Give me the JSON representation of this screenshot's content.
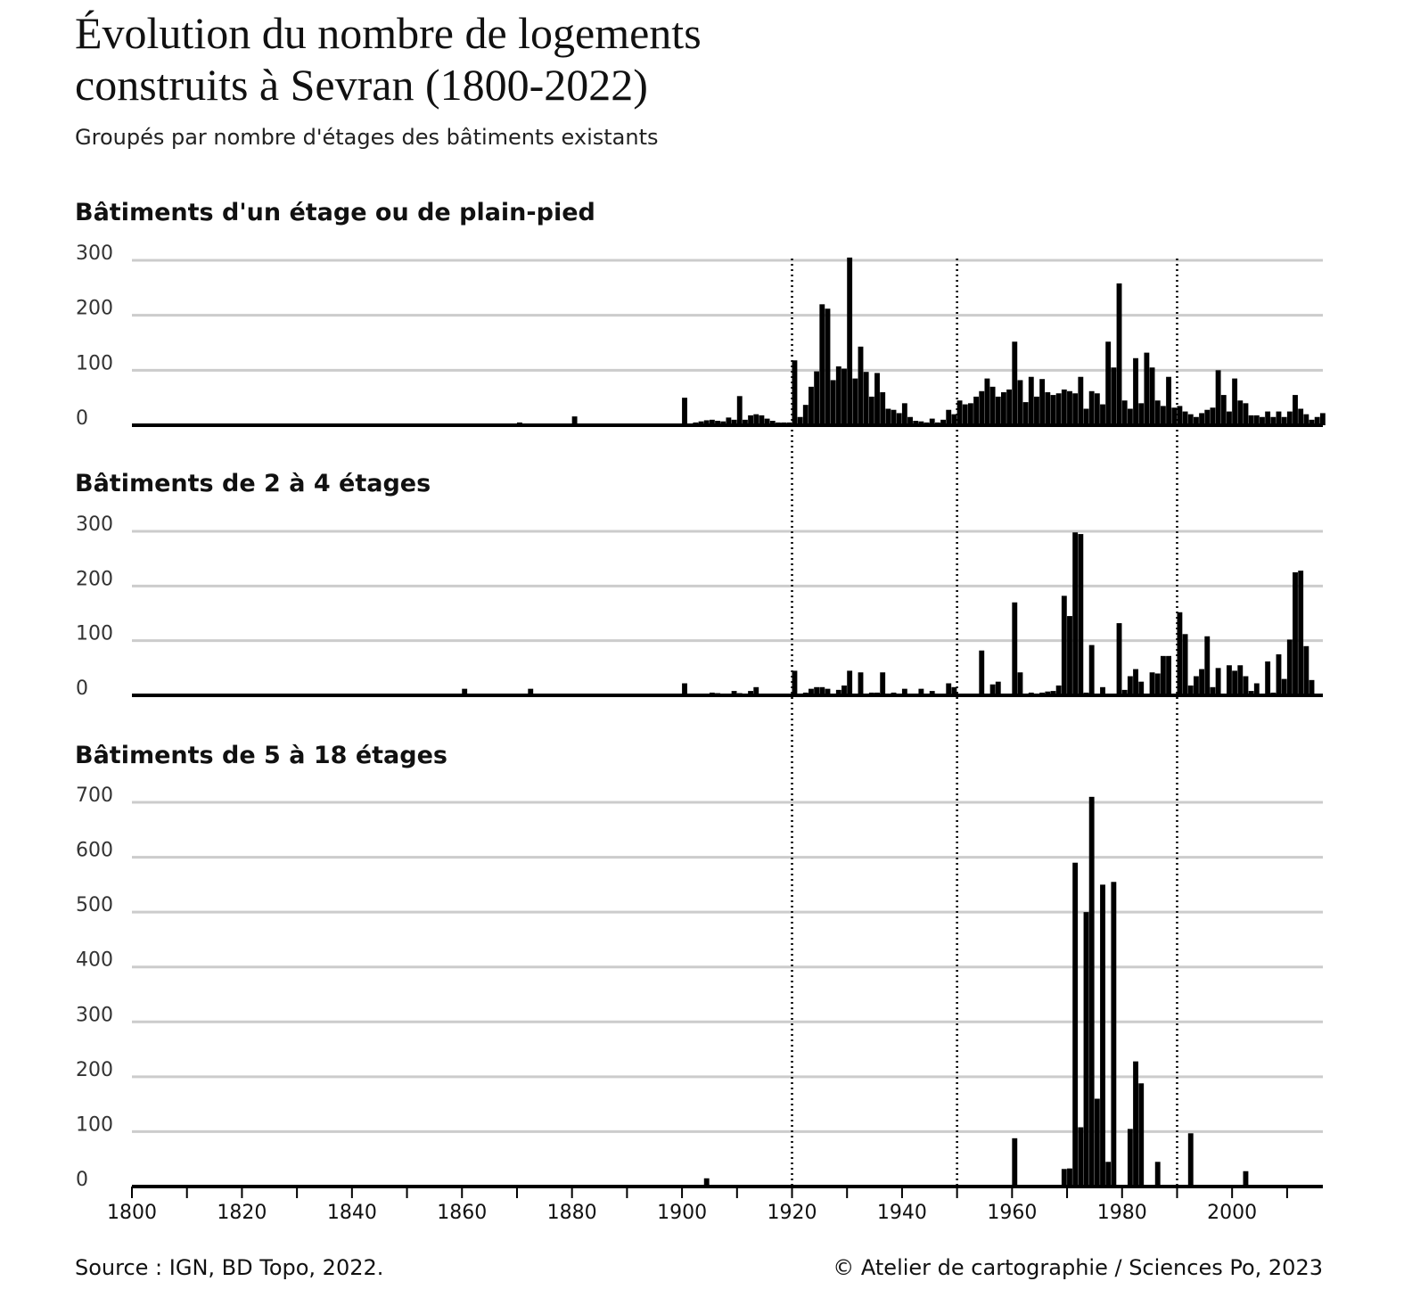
{
  "title_lines": [
    "Évolution du nombre de logements",
    "construits à Sevran (1800-2022)"
  ],
  "subtitle": "Groupés par nombre d'étages des bâtiments existants",
  "source": "Source : IGN, BD Topo, 2022.",
  "credit": "© Atelier de cartographie / Sciences Po, 2023",
  "reference_lines": [
    1920,
    1950,
    1990
  ],
  "chart_data": [
    {
      "type": "bar",
      "title": "Bâtiments d'un étage ou de plain-pied",
      "color": "#000000",
      "xlim": [
        1800,
        2016.5
      ],
      "ylim": [
        0,
        300
      ],
      "yticks": [
        0,
        100,
        200,
        300
      ],
      "grid": true,
      "x": [
        1850,
        1870,
        1880,
        1895,
        1900,
        1901,
        1902,
        1903,
        1904,
        1905,
        1906,
        1907,
        1908,
        1909,
        1910,
        1911,
        1912,
        1913,
        1914,
        1915,
        1916,
        1917,
        1918,
        1919,
        1920,
        1921,
        1922,
        1923,
        1924,
        1925,
        1926,
        1927,
        1928,
        1929,
        1930,
        1931,
        1932,
        1933,
        1934,
        1935,
        1936,
        1937,
        1938,
        1939,
        1940,
        1941,
        1942,
        1943,
        1944,
        1945,
        1946,
        1947,
        1948,
        1949,
        1950,
        1951,
        1952,
        1953,
        1954,
        1955,
        1956,
        1957,
        1958,
        1959,
        1960,
        1961,
        1962,
        1963,
        1964,
        1965,
        1966,
        1967,
        1968,
        1969,
        1970,
        1971,
        1972,
        1973,
        1974,
        1975,
        1976,
        1977,
        1978,
        1979,
        1980,
        1981,
        1982,
        1983,
        1984,
        1985,
        1986,
        1987,
        1988,
        1989,
        1990,
        1991,
        1992,
        1993,
        1994,
        1995,
        1996,
        1997,
        1998,
        1999,
        2000,
        2001,
        2002,
        2003,
        2004,
        2005,
        2006,
        2007,
        2008,
        2009,
        2010,
        2011,
        2012,
        2013,
        2014,
        2015,
        2016
      ],
      "values": [
        3,
        5,
        16,
        2,
        50,
        3,
        5,
        7,
        9,
        10,
        8,
        7,
        14,
        10,
        53,
        10,
        18,
        20,
        18,
        12,
        8,
        5,
        5,
        5,
        118,
        15,
        37,
        70,
        98,
        220,
        212,
        82,
        107,
        103,
        305,
        85,
        143,
        97,
        52,
        95,
        60,
        30,
        28,
        22,
        40,
        15,
        8,
        7,
        5,
        12,
        5,
        10,
        28,
        20,
        45,
        38,
        40,
        52,
        62,
        85,
        70,
        52,
        60,
        65,
        152,
        82,
        42,
        88,
        52,
        84,
        60,
        55,
        58,
        65,
        62,
        58,
        88,
        30,
        62,
        58,
        38,
        152,
        105,
        258,
        45,
        30,
        122,
        40,
        132,
        105,
        45,
        35,
        88,
        32,
        35,
        25,
        20,
        15,
        22,
        28,
        32,
        100,
        55,
        25,
        85,
        45,
        40,
        18,
        18,
        15,
        25,
        15,
        25,
        15,
        25,
        55,
        30,
        20,
        10,
        15,
        22
      ]
    },
    {
      "type": "bar",
      "title": "Bâtiments de 2 à 4 étages",
      "color": "#000000",
      "xlim": [
        1800,
        2016.5
      ],
      "ylim": [
        0,
        300
      ],
      "yticks": [
        0,
        100,
        200,
        300
      ],
      "grid": true,
      "x": [
        1860,
        1872,
        1900,
        1905,
        1906,
        1909,
        1910,
        1912,
        1913,
        1920,
        1922,
        1923,
        1924,
        1925,
        1926,
        1928,
        1929,
        1930,
        1932,
        1934,
        1935,
        1936,
        1938,
        1940,
        1943,
        1945,
        1948,
        1949,
        1954,
        1956,
        1957,
        1960,
        1961,
        1963,
        1965,
        1966,
        1967,
        1968,
        1969,
        1970,
        1971,
        1972,
        1973,
        1974,
        1976,
        1979,
        1980,
        1981,
        1982,
        1983,
        1985,
        1986,
        1987,
        1988,
        1990,
        1991,
        1992,
        1993,
        1994,
        1995,
        1996,
        1997,
        1999,
        2000,
        2001,
        2002,
        2003,
        2004,
        2006,
        2007,
        2008,
        2009,
        2010,
        2011,
        2012,
        2013,
        2014
      ],
      "values": [
        12,
        12,
        22,
        5,
        4,
        8,
        4,
        8,
        15,
        45,
        5,
        12,
        15,
        15,
        12,
        10,
        18,
        45,
        42,
        5,
        5,
        42,
        5,
        12,
        12,
        8,
        22,
        15,
        82,
        20,
        25,
        170,
        42,
        5,
        5,
        7,
        8,
        18,
        182,
        145,
        298,
        295,
        5,
        92,
        15,
        132,
        10,
        35,
        48,
        25,
        42,
        40,
        72,
        72,
        152,
        112,
        18,
        35,
        48,
        108,
        15,
        50,
        55,
        45,
        55,
        35,
        8,
        22,
        62,
        5,
        75,
        30,
        102,
        225,
        228,
        90,
        28
      ]
    },
    {
      "type": "bar",
      "title": "Bâtiments de 5 à 18 étages",
      "color": "#000000",
      "xlim": [
        1800,
        2016.5
      ],
      "ylim": [
        0,
        700
      ],
      "yticks": [
        0,
        100,
        200,
        300,
        400,
        500,
        600,
        700
      ],
      "grid": true,
      "xticks": [
        1800,
        1820,
        1840,
        1860,
        1880,
        1900,
        1920,
        1940,
        1960,
        1980,
        2000
      ],
      "xminorticks": [
        1810,
        1830,
        1850,
        1870,
        1890,
        1910,
        1930,
        1950,
        1970,
        1990,
        2010
      ],
      "x": [
        1904,
        1960,
        1969,
        1970,
        1971,
        1972,
        1973,
        1974,
        1975,
        1976,
        1977,
        1978,
        1981,
        1982,
        1983,
        1986,
        1992,
        2002
      ],
      "values": [
        15,
        88,
        32,
        33,
        590,
        108,
        500,
        710,
        160,
        550,
        45,
        555,
        105,
        228,
        188,
        45,
        97,
        28
      ]
    }
  ]
}
